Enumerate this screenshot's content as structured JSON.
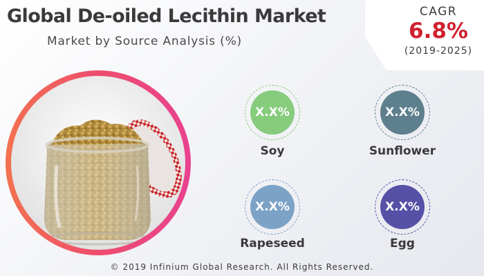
{
  "header": {
    "title": "Global De-oiled Lecithin Market",
    "subtitle": "Market by Source Analysis (%)"
  },
  "cagr": {
    "label": "CAGR",
    "value": "6.8%",
    "period": "(2019-2025)",
    "value_color": "#d0202e"
  },
  "photo": {
    "icon": "lecithin-jar-photo",
    "ring_colors": [
      "#f3724f",
      "#e9428f"
    ]
  },
  "segments": [
    {
      "label": "Soy",
      "value": "X.X%",
      "color": "#86cc7c",
      "dash": "#86cc7c"
    },
    {
      "label": "Sunflower",
      "value": "X.X%",
      "color": "#5e7f8e",
      "dash": "#5e7f8e"
    },
    {
      "label": "Rapeseed",
      "value": "X.X%",
      "color": "#7ca3c6",
      "dash": "#7ca3c6"
    },
    {
      "label": "Egg",
      "value": "X.X%",
      "color": "#5650a6",
      "dash": "#5650a6"
    }
  ],
  "footer": {
    "text": "© 2019 Infinium Global Research. All Rights Reserved."
  }
}
